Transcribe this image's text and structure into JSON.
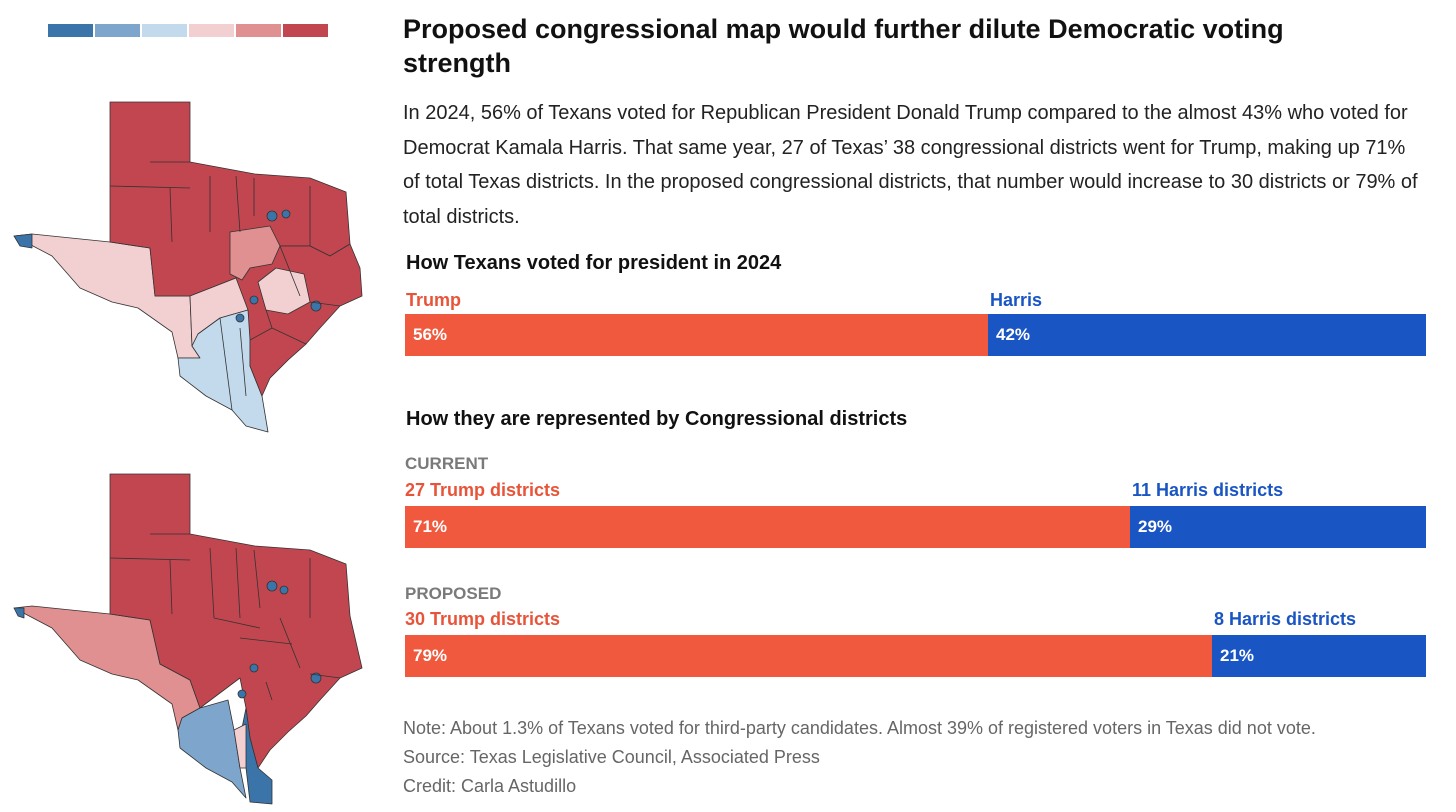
{
  "legend": {
    "colors": [
      "#3a74a8",
      "#7ea6cc",
      "#c3d9ec",
      "#f2cfd1",
      "#e09090",
      "#c24650"
    ]
  },
  "headline": "Proposed congressional map would further dilute Democratic voting strength",
  "dek": "In 2024, 56% of Texans voted for Republican President Donald Trump compared to the almost 43% who voted for Democrat Kamala Harris. That same year, 27 of Texas’ 38 congressional districts went for Trump, making up 71% of total Texas districts. In the proposed congressional districts, that number would increase to 30 districts or 79% of total districts.",
  "colors": {
    "trump": "#f0593d",
    "harris": "#1a55c4",
    "trump_text": "#e8543a",
    "muted": "#7a7a7a"
  },
  "chart_data": [
    {
      "type": "bar",
      "orientation": "horizontal-stacked",
      "title": "How Texans voted for president in 2024",
      "series": [
        {
          "name": "Trump",
          "label": "Trump",
          "value": 56,
          "value_label": "56%"
        },
        {
          "name": "Harris",
          "label": "Harris",
          "value": 42,
          "value_label": "42%"
        }
      ]
    },
    {
      "type": "bar",
      "orientation": "horizontal-stacked",
      "title": "How they are represented by Congressional districts",
      "groups": [
        {
          "group": "CURRENT",
          "series": [
            {
              "name": "Trump",
              "label": "27 Trump districts",
              "value": 71,
              "value_label": "71%"
            },
            {
              "name": "Harris",
              "label": "11 Harris districts",
              "value": 29,
              "value_label": "29%"
            }
          ]
        },
        {
          "group": "PROPOSED",
          "series": [
            {
              "name": "Trump",
              "label": "30 Trump districts",
              "value": 79,
              "value_label": "79%"
            },
            {
              "name": "Harris",
              "label": "8 Harris districts",
              "value": 21,
              "value_label": "21%"
            }
          ]
        }
      ]
    }
  ],
  "notes": {
    "note": "Note: About 1.3% of Texans voted for third-party candidates. Almost 39% of registered voters in Texas did not vote.",
    "source": "Source: Texas Legislative Council, Associated Press",
    "credit": "Credit: Carla Astudillo"
  }
}
